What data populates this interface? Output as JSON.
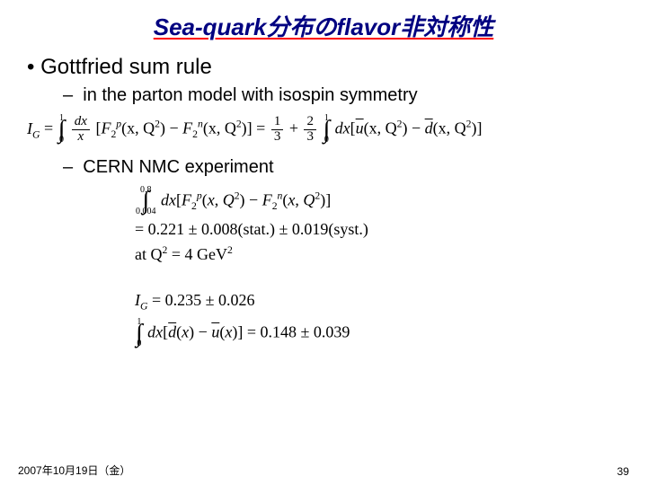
{
  "title": "Sea-quark分布のflavor非対称性",
  "bullets": {
    "main": "Gottfried sum rule",
    "sub1": "in the parton model with isospin symmetry",
    "sub2": "CERN NMC experiment"
  },
  "equations": {
    "gottfried": {
      "lhs": "I",
      "lhs_sub": "G",
      "int1_lo": "0",
      "int1_up": "1",
      "frac_num": "dx",
      "frac_den": "x",
      "F2p": "F",
      "F2p_sub": "2",
      "F2p_sup": "p",
      "arg1": "(x, Q",
      "argsup": "2",
      "arg2": ")",
      "F2n": "F",
      "F2n_sub": "2",
      "F2n_sup": "n",
      "rhs1_num": "1",
      "rhs1_den": "3",
      "rhs2_num": "2",
      "rhs2_den": "3",
      "int2_lo": "0",
      "int2_up": "1",
      "ubar": "u",
      "dbar": "d"
    },
    "nmc": {
      "int_lo": "0.004",
      "int_up": "0.8",
      "value": "= 0.221 ± 0.008(stat.) ± 0.019(syst.)",
      "at": "at  Q",
      "q2val": " = 4 GeV",
      "q2sup": "2"
    },
    "ig_result": {
      "lhs": "I",
      "lhs_sub": "G",
      "val": " = 0.235 ± 0.026"
    },
    "dbar_ubar": {
      "int_lo": "0",
      "int_up": "1",
      "val": " = 0.148 ± 0.039"
    }
  },
  "footer": {
    "date": "2007年10月19日（金）",
    "page": "39"
  },
  "colors": {
    "title": "#000080",
    "underline": "#ff0000",
    "text": "#000000",
    "background": "#ffffff"
  },
  "fontsizes": {
    "title": 26,
    "bullet_l1": 24,
    "bullet_l2": 20,
    "equation": 18,
    "footer": 12
  }
}
